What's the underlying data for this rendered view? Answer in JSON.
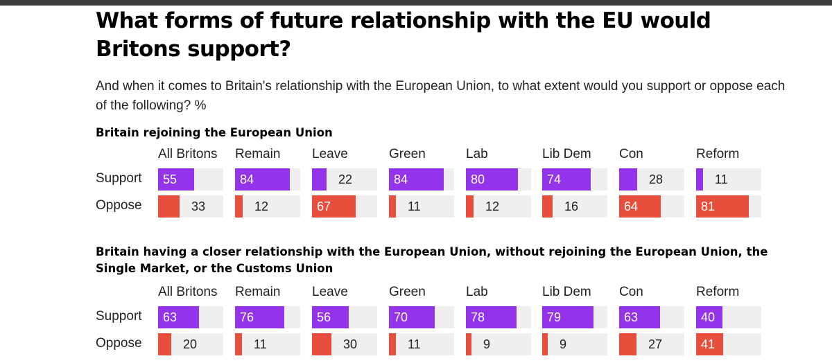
{
  "title": "What forms of future relationship with the EU would Britons support?",
  "subtitle": "And when it comes to Britain's relationship with the European Union, to what extent would you support or oppose each of the following? %",
  "colors": {
    "support": "#9333ea",
    "oppose": "#e84e3c",
    "track": "#efefef"
  },
  "chart_data": [
    {
      "type": "bar",
      "title": "Britain rejoining the European Union",
      "categories": [
        "All Britons",
        "Remain",
        "Leave",
        "Green",
        "Lab",
        "Lib Dem",
        "Con",
        "Reform"
      ],
      "series": [
        {
          "name": "Support",
          "values": [
            55,
            84,
            22,
            84,
            80,
            74,
            28,
            11
          ]
        },
        {
          "name": "Oppose",
          "values": [
            33,
            12,
            67,
            11,
            12,
            16,
            64,
            81
          ]
        }
      ],
      "ylim": [
        0,
        100
      ]
    },
    {
      "type": "bar",
      "title": "Britain having a closer relationship with the European Union, without rejoining the European Union, the Single Market, or the Customs Union",
      "categories": [
        "All Britons",
        "Remain",
        "Leave",
        "Green",
        "Lab",
        "Lib Dem",
        "Con",
        "Reform"
      ],
      "series": [
        {
          "name": "Support",
          "values": [
            63,
            76,
            56,
            70,
            78,
            79,
            63,
            40
          ]
        },
        {
          "name": "Oppose",
          "values": [
            20,
            11,
            30,
            11,
            9,
            9,
            27,
            41
          ]
        }
      ],
      "ylim": [
        0,
        100
      ]
    }
  ]
}
